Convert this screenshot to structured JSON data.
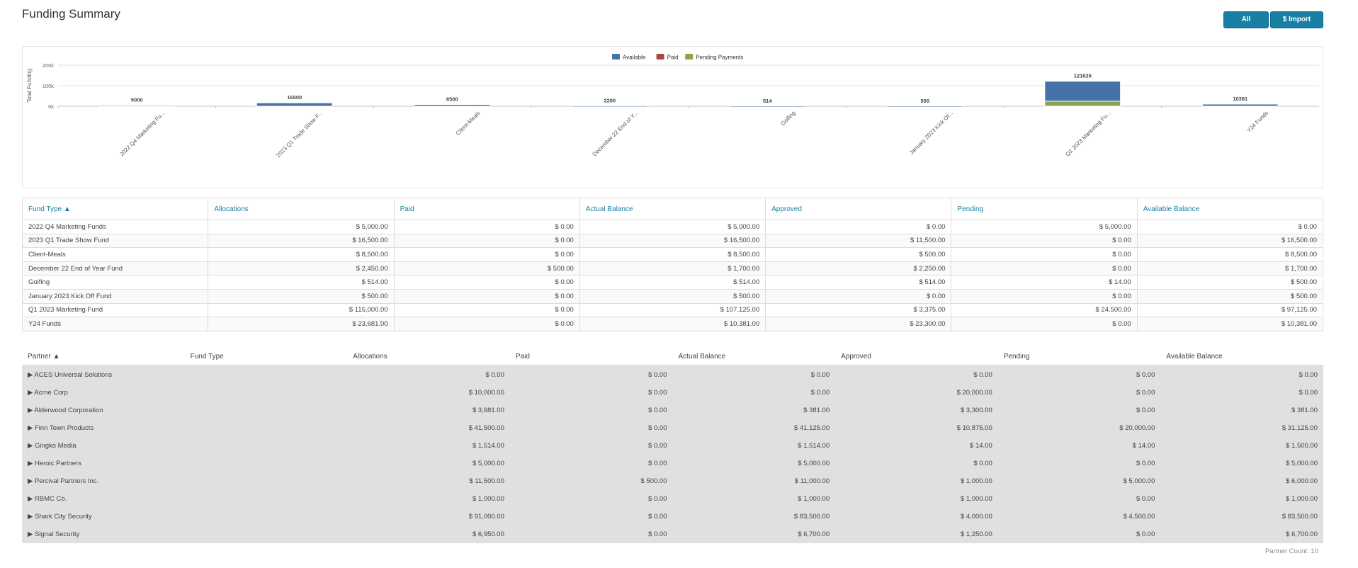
{
  "page": {
    "title": "Funding Summary",
    "partner_count": "Partner Count: 10"
  },
  "toolbar": {
    "all_partners": "All Partners",
    "import_funds": "$ Import Funds"
  },
  "chart_data": {
    "type": "bar",
    "ylabel": "Total Funding",
    "xlabel": "",
    "ylim": [
      0,
      200000
    ],
    "yticks": [
      "0k",
      "100k",
      "200k"
    ],
    "legend_position": "top",
    "categories": [
      "2022 Q4 Marketing Fu...",
      "2023 Q1 Trade Show F...",
      "Client-Meals",
      "December 22 End of Y...",
      "Golfing",
      "January 2023 Kick Of...",
      "Q1 2023 Marketing Fu...",
      "Y24 Funds"
    ],
    "totals": [
      "5000",
      "16500",
      "8500",
      "2200",
      "514",
      "500",
      "121625",
      "10381"
    ],
    "series": [
      {
        "name": "Available",
        "color": "#4572a7",
        "values": [
          0,
          16500,
          8500,
          1700,
          500,
          500,
          97125,
          10381
        ]
      },
      {
        "name": "Paid",
        "color": "#aa4643",
        "values": [
          0,
          0,
          0,
          500,
          0,
          0,
          0,
          0
        ]
      },
      {
        "name": "Pending Payments",
        "color": "#89a54e",
        "values": [
          5000,
          0,
          0,
          0,
          14,
          0,
          24500,
          0
        ]
      }
    ],
    "grid": true
  },
  "fund_table": {
    "headers": [
      "Fund Type ▲",
      "Allocations",
      "Paid",
      "Actual Balance",
      "Approved",
      "Pending",
      "Available Balance"
    ],
    "rows": [
      [
        "2022 Q4 Marketing Funds",
        "$ 5,000.00",
        "$ 0.00",
        "$ 5,000.00",
        "$ 0.00",
        "$ 5,000.00",
        "$ 0.00"
      ],
      [
        "2023 Q1 Trade Show Fund",
        "$ 16,500.00",
        "$ 0.00",
        "$ 16,500.00",
        "$ 11,500.00",
        "$ 0.00",
        "$ 16,500.00"
      ],
      [
        "Client-Meals",
        "$ 8,500.00",
        "$ 0.00",
        "$ 8,500.00",
        "$ 500.00",
        "$ 0.00",
        "$ 8,500.00"
      ],
      [
        "December 22 End of Year Fund",
        "$ 2,450.00",
        "$ 500.00",
        "$ 1,700.00",
        "$ 2,250.00",
        "$ 0.00",
        "$ 1,700.00"
      ],
      [
        "Golfing",
        "$ 514.00",
        "$ 0.00",
        "$ 514.00",
        "$ 514.00",
        "$ 14.00",
        "$ 500.00"
      ],
      [
        "January 2023 Kick Off Fund",
        "$ 500.00",
        "$ 0.00",
        "$ 500.00",
        "$ 0.00",
        "$ 0.00",
        "$ 500.00"
      ],
      [
        "Q1 2023 Marketing Fund",
        "$ 115,000.00",
        "$ 0.00",
        "$ 107,125.00",
        "$ 3,375.00",
        "$ 24,500.00",
        "$ 97,125.00"
      ],
      [
        "Y24 Funds",
        "$ 23,681.00",
        "$ 0.00",
        "$ 10,381.00",
        "$ 23,300.00",
        "$ 0.00",
        "$ 10,381.00"
      ]
    ]
  },
  "partner_table": {
    "headers": [
      "Partner ▲",
      "Fund Type",
      "Allocations",
      "Paid",
      "Actual Balance",
      "Approved",
      "Pending",
      "Available Balance"
    ],
    "rows": [
      [
        "▶ ACES Universal Solutions",
        "",
        "$ 0.00",
        "$ 0.00",
        "$ 0.00",
        "$ 0.00",
        "$ 0.00",
        "$ 0.00"
      ],
      [
        "▶ Acme Corp",
        "",
        "$ 10,000.00",
        "$ 0.00",
        "$ 0.00",
        "$ 20,000.00",
        "$ 0.00",
        "$ 0.00"
      ],
      [
        "▶ Alderwood Corporation",
        "",
        "$ 3,681.00",
        "$ 0.00",
        "$ 381.00",
        "$ 3,300.00",
        "$ 0.00",
        "$ 381.00"
      ],
      [
        "▶ Finn Town Products",
        "",
        "$ 41,500.00",
        "$ 0.00",
        "$ 41,125.00",
        "$ 10,875.00",
        "$ 20,000.00",
        "$ 31,125.00"
      ],
      [
        "▶ Gingko Media",
        "",
        "$ 1,514.00",
        "$ 0.00",
        "$ 1,514.00",
        "$ 14.00",
        "$ 14.00",
        "$ 1,500.00"
      ],
      [
        "▶ Heroic Partners",
        "",
        "$ 5,000.00",
        "$ 0.00",
        "$ 5,000.00",
        "$ 0.00",
        "$ 0.00",
        "$ 5,000.00"
      ],
      [
        "▶ Percival Partners Inc.",
        "",
        "$ 11,500.00",
        "$ 500.00",
        "$ 11,000.00",
        "$ 1,000.00",
        "$ 5,000.00",
        "$ 6,000.00"
      ],
      [
        "▶ RBMC Co.",
        "",
        "$ 1,000.00",
        "$ 0.00",
        "$ 1,000.00",
        "$ 1,000.00",
        "$ 0.00",
        "$ 1,000.00"
      ],
      [
        "▶ Shark City Security",
        "",
        "$ 91,000.00",
        "$ 0.00",
        "$ 83,500.00",
        "$ 4,000.00",
        "$ 4,500.00",
        "$ 83,500.00"
      ],
      [
        "▶ Signal Security",
        "",
        "$ 6,950.00",
        "$ 0.00",
        "$ 6,700.00",
        "$ 1,250.00",
        "$ 0.00",
        "$ 6,700.00"
      ]
    ]
  }
}
